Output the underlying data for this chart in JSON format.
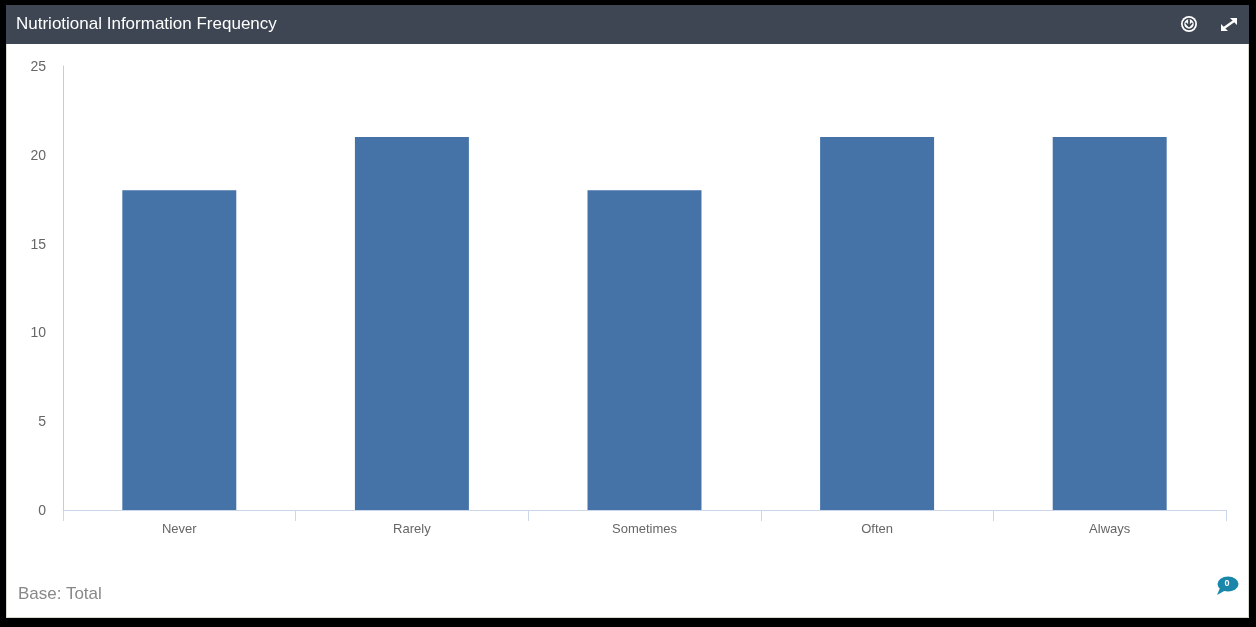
{
  "chart_data": {
    "type": "bar",
    "title": "Nutriotional Information Frequency",
    "categories": [
      "Never",
      "Rarely",
      "Sometimes",
      "Often",
      "Always"
    ],
    "values": [
      18,
      21,
      18,
      21,
      21
    ],
    "color": "#4572a7",
    "ylim": [
      0,
      25
    ],
    "yticks": [
      0,
      5,
      10,
      15,
      20,
      25
    ],
    "grid": false,
    "annotations": [
      "Base: Total",
      "0"
    ]
  }
}
